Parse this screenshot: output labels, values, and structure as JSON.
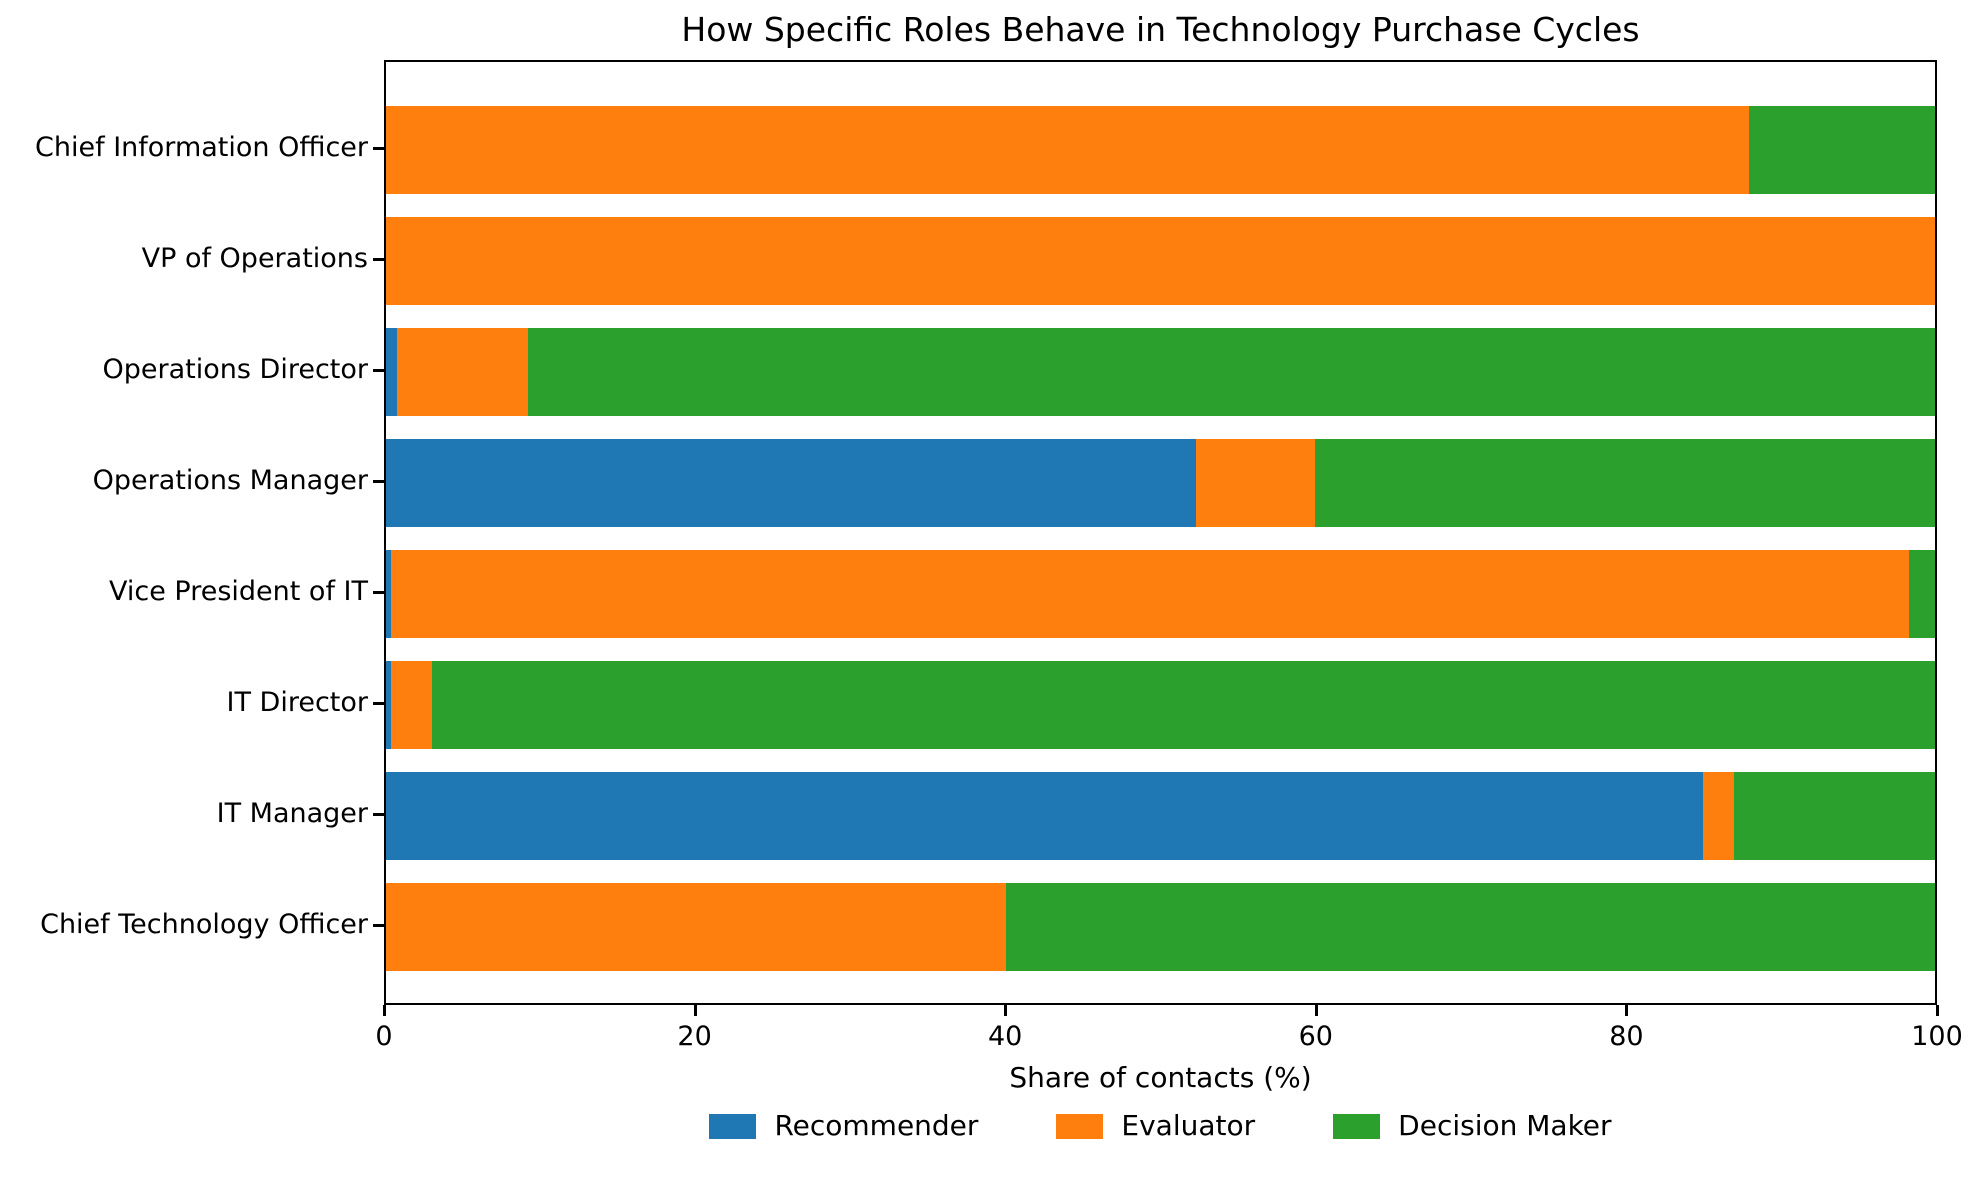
{
  "chart_data": {
    "type": "bar",
    "orientation": "horizontal",
    "stacked": true,
    "title": "How Specific Roles Behave in Technology Purchase Cycles",
    "xlabel": "Share of contacts (%)",
    "xlim": [
      0,
      100
    ],
    "xticks": [
      0,
      20,
      40,
      60,
      80,
      100
    ],
    "grid": false,
    "legend_position": "bottom-center",
    "categories": [
      "Chief Information Officer",
      "VP of Operations",
      "Operations Director",
      "Operations Manager",
      "Vice President of IT",
      "IT Director",
      "IT Manager",
      "Chief Technology Officer"
    ],
    "series": [
      {
        "name": "Recommender",
        "color": "#1f77b4",
        "values": [
          0,
          0,
          0.7,
          52.3,
          0.3,
          0.3,
          85,
          0
        ]
      },
      {
        "name": "Evaluator",
        "color": "#ff7f0e",
        "values": [
          88,
          100,
          8.5,
          7.7,
          98,
          2.7,
          2,
          40
        ]
      },
      {
        "name": "Decision Maker",
        "color": "#2ca02c",
        "values": [
          12,
          0,
          90.8,
          40,
          1.7,
          97,
          13,
          60
        ]
      }
    ]
  }
}
